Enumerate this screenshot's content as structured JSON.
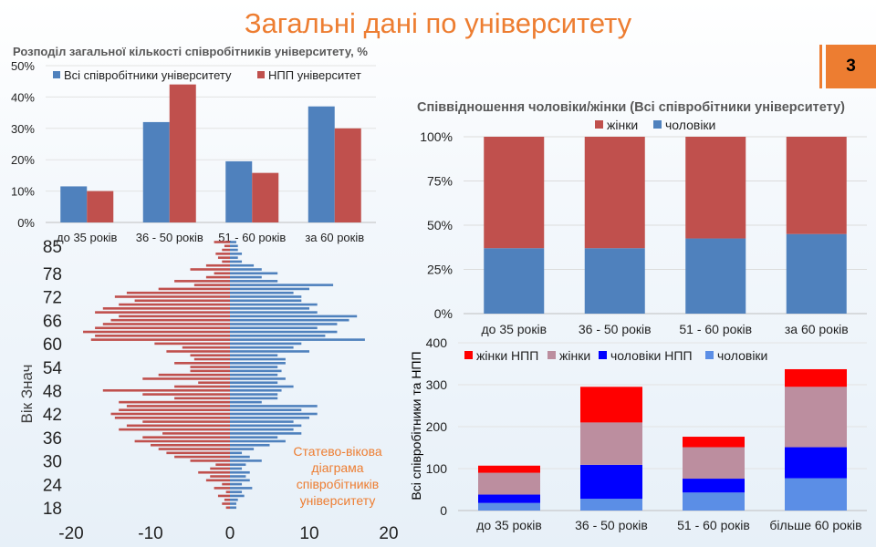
{
  "page": {
    "title": "Загальні дані по університету",
    "slide_number": "3"
  },
  "colors": {
    "accent": "#ED7D31",
    "blue": "#4F81BD",
    "red": "#C0504D",
    "npp_women": "#FF0000",
    "women": "#BC8E9F",
    "npp_men": "#0000FF",
    "men": "#5B8EE6"
  },
  "chart_data": [
    {
      "type": "bar",
      "title": "Розподіл загальної кількості співробітників університету, %",
      "categories": [
        "до 35 років",
        "36 - 50 років",
        "51 - 60 років",
        "за 60 років"
      ],
      "series": [
        {
          "name": "Всі співробітники університету",
          "values": [
            11.5,
            32,
            19.5,
            37
          ]
        },
        {
          "name": "НПП університет",
          "values": [
            10,
            44,
            15.8,
            30
          ]
        }
      ],
      "yticks": [
        "0%",
        "10%",
        "20%",
        "30%",
        "40%",
        "50%"
      ],
      "ylim": [
        0,
        50
      ],
      "legend": "top"
    },
    {
      "type": "bar",
      "stacked": true,
      "percent": true,
      "title": "Співвідношення чоловіки/жінки (Всі співробітники університету)",
      "categories": [
        "до 35 років",
        "36 - 50 років",
        "51 - 60 років",
        "за 60 років"
      ],
      "series": [
        {
          "name": "чоловіки",
          "values": [
            37,
            37,
            42.5,
            45
          ]
        },
        {
          "name": "жінки",
          "values": [
            63,
            63,
            57.5,
            55
          ]
        }
      ],
      "yticks": [
        "0%",
        "25%",
        "50%",
        "75%",
        "100%"
      ],
      "ylim": [
        0,
        100
      ],
      "legend": "top"
    },
    {
      "type": "bar",
      "orientation": "horizontal",
      "title": "",
      "annotation": "Статево-вікова діаграма співробітників університету",
      "ylabel": "Вік Знач",
      "ytick_labels": [
        "18",
        "24",
        "30",
        "36",
        "42",
        "48",
        "54",
        "60",
        "66",
        "72",
        "78",
        "85"
      ],
      "xtick_labels": [
        "-20",
        "-10",
        "0",
        "10",
        "20"
      ],
      "xlim": [
        -20,
        20
      ],
      "age_range": [
        18,
        86
      ],
      "series": [
        {
          "name": "жінки",
          "ages": [
            18,
            19,
            20,
            21,
            22,
            23,
            24,
            25,
            26,
            27,
            28,
            29,
            30,
            31,
            32,
            33,
            34,
            35,
            36,
            37,
            38,
            39,
            40,
            41,
            42,
            43,
            44,
            45,
            46,
            47,
            48,
            49,
            50,
            51,
            52,
            53,
            54,
            55,
            56,
            57,
            58,
            59,
            60,
            61,
            62,
            63,
            64,
            65,
            66,
            67,
            68,
            69,
            70,
            71,
            72,
            73,
            74,
            75,
            76,
            77,
            78,
            79,
            80,
            81,
            82,
            83,
            84,
            85,
            86
          ],
          "values": [
            -0.5,
            -1,
            -0.7,
            -1.5,
            -0.5,
            -2,
            -1,
            -3,
            -2.5,
            -4,
            -2.5,
            -1.8,
            -5,
            -7,
            -8,
            -9,
            -10,
            -12,
            -11,
            -8.5,
            -14,
            -13,
            -11,
            -14.5,
            -15,
            -14,
            -13,
            -14,
            -7,
            -11,
            -16,
            -7,
            -4,
            -11,
            -9,
            -5,
            -5,
            -7,
            -4.5,
            -5,
            -8,
            -6,
            -9.5,
            -17.5,
            -17,
            -18.5,
            -17,
            -16,
            -15,
            -14,
            -17,
            -16,
            -14,
            -12,
            -14.5,
            -13,
            -9,
            -4.5,
            -7,
            -3,
            -2,
            -5,
            -3,
            -1,
            -1.5,
            -1.8,
            -1,
            -0.7,
            -2
          ]
        },
        {
          "name": "чоловіки",
          "ages": [
            18,
            19,
            20,
            21,
            22,
            23,
            24,
            25,
            26,
            27,
            28,
            29,
            30,
            31,
            32,
            33,
            34,
            35,
            36,
            37,
            38,
            39,
            40,
            41,
            42,
            43,
            44,
            45,
            46,
            47,
            48,
            49,
            50,
            51,
            52,
            53,
            54,
            55,
            56,
            57,
            58,
            59,
            60,
            61,
            62,
            63,
            64,
            65,
            66,
            67,
            68,
            69,
            70,
            71,
            72,
            73,
            74,
            75,
            76,
            77,
            78,
            79,
            80,
            81,
            82,
            83,
            84,
            85,
            86
          ],
          "values": [
            0.8,
            0.8,
            1,
            1.8,
            1.5,
            2.8,
            1.5,
            2.5,
            2,
            2.5,
            1.5,
            2,
            4,
            2.5,
            1.5,
            3,
            5,
            7,
            6,
            9,
            8,
            9,
            8,
            10,
            11,
            9,
            11,
            4,
            6,
            6,
            6.5,
            8,
            6,
            7,
            6,
            6.5,
            6,
            7,
            7,
            6,
            10,
            8,
            9,
            17,
            12,
            13.5,
            11,
            13.5,
            15,
            16,
            11,
            10,
            11,
            9,
            9,
            8,
            10,
            13,
            6,
            4,
            6,
            4,
            3,
            1.5,
            1,
            1.5,
            1,
            1,
            0.8
          ]
        }
      ]
    },
    {
      "type": "bar",
      "stacked": true,
      "title": "",
      "ylabel": "Всі співробітники та НПП",
      "categories": [
        "до 35 років",
        "36 - 50 років",
        "51 - 60 років",
        "більше 60 років"
      ],
      "series": [
        {
          "name": "жінки НПП",
          "values": [
            17,
            85,
            25,
            42
          ]
        },
        {
          "name": "жінки",
          "values": [
            52,
            101,
            75,
            144
          ]
        },
        {
          "name": "чоловіки НПП",
          "values": [
            20,
            81,
            33,
            74
          ]
        },
        {
          "name": "чоловіки",
          "values": [
            18,
            28,
            43,
            77
          ]
        }
      ],
      "yticks": [
        "0",
        "100",
        "200",
        "300",
        "400"
      ],
      "ylim": [
        0,
        400
      ],
      "legend": "top"
    }
  ]
}
